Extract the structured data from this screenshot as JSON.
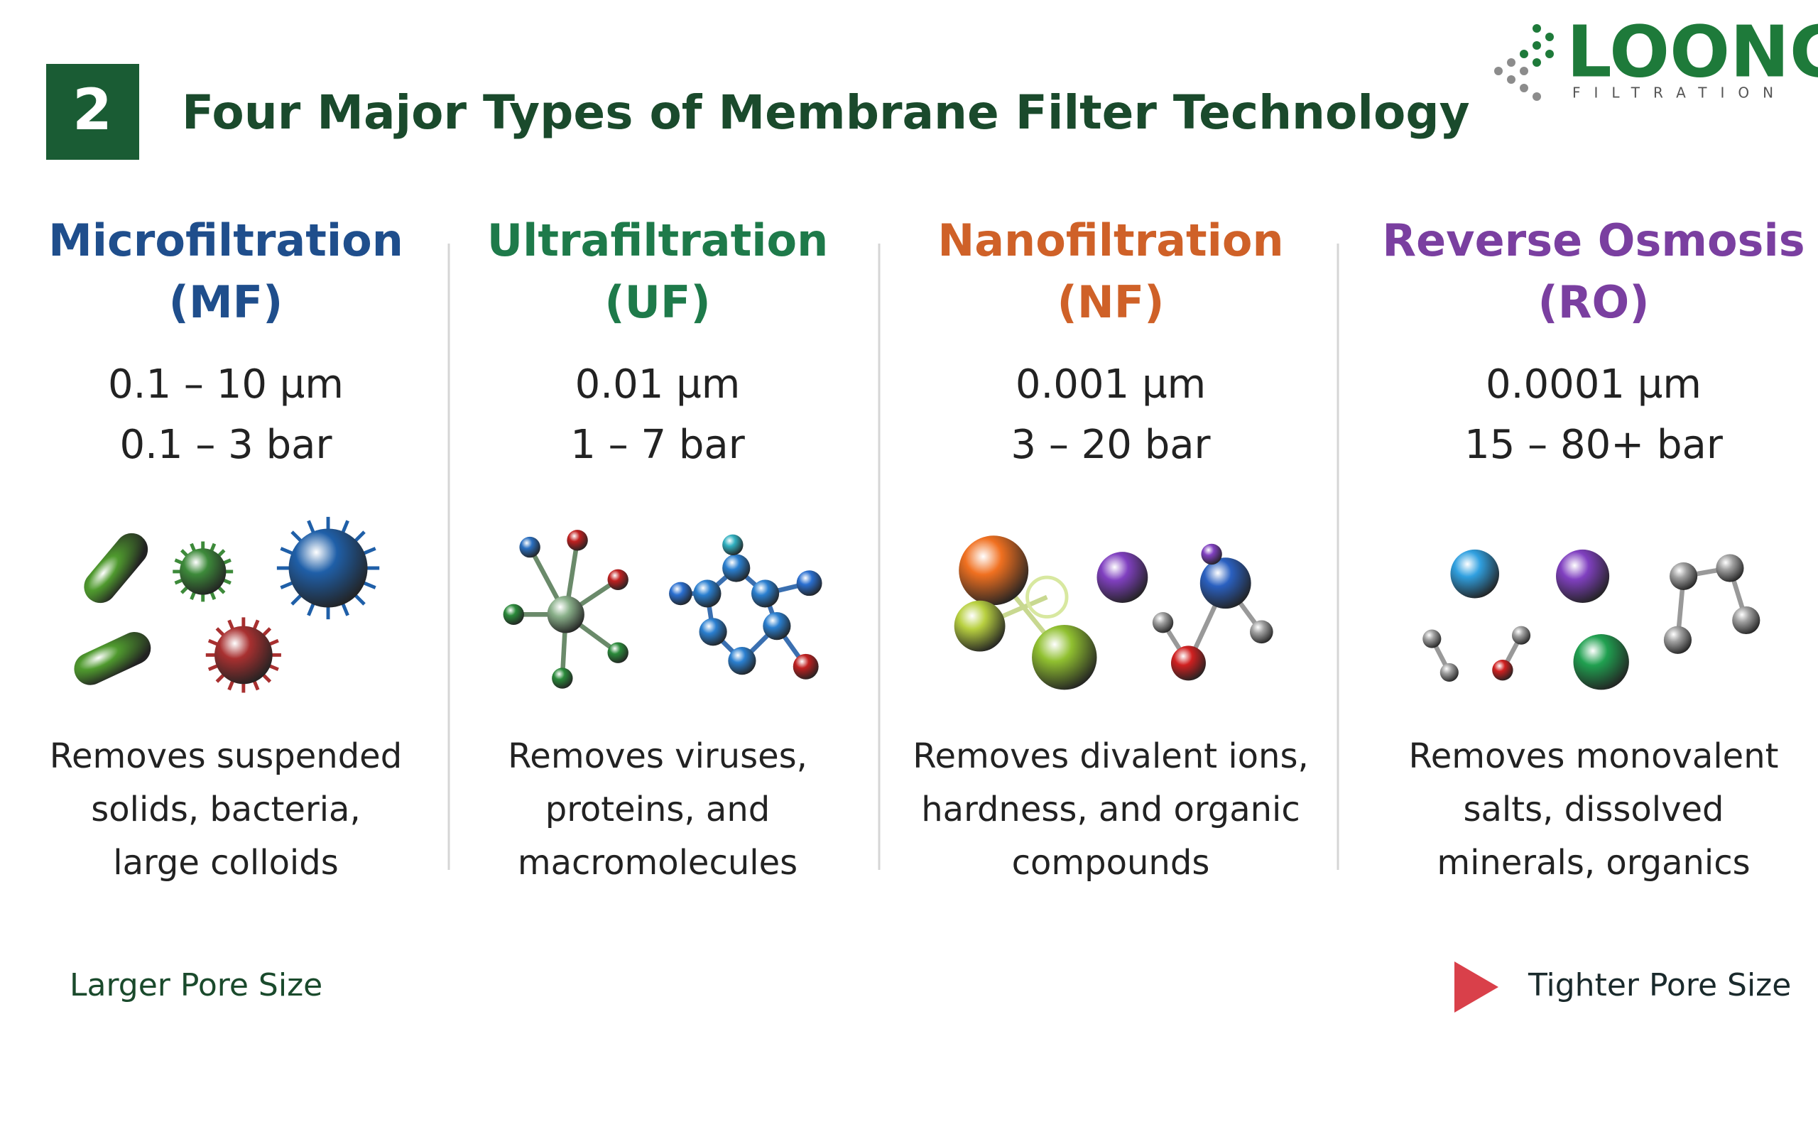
{
  "header": {
    "number": "2",
    "title": "Four Major Types of Membrane Filter Technology"
  },
  "logo": {
    "name": "LOONG",
    "tagline": "FILTRATION"
  },
  "columns": [
    {
      "name": "Microfiltration",
      "abbr": "(MF)",
      "pore_size": "0.1 – 10 µm",
      "pressure": "0.1 – 3 bar",
      "description": [
        "Removes suspended",
        "solids, bacteria,",
        "large colloids"
      ],
      "color": "#1f4e8c"
    },
    {
      "name": "Ultrafiltration",
      "abbr": "(UF)",
      "pore_size": "0.01 µm",
      "pressure": "1 – 7 bar",
      "description": [
        "Removes viruses,",
        "proteins, and",
        "macromolecules"
      ],
      "color": "#1e7a4a"
    },
    {
      "name": "Nanofiltration",
      "abbr": "(NF)",
      "pore_size": "0.001 µm",
      "pressure": "3 – 20 bar",
      "description": [
        "Removes divalent ions,",
        "hardness, and organic",
        "compounds"
      ],
      "color": "#cf6128"
    },
    {
      "name": "Reverse Osmosis",
      "abbr": "(RO)",
      "pore_size": "0.0001 µm",
      "pressure": "15 – 80+ bar",
      "description": [
        "Removes monovalent",
        "salts, dissolved",
        "minerals, organics"
      ],
      "color": "#7a3fa0"
    }
  ],
  "scale": {
    "left_label": "Larger Pore Size",
    "right_label": "Tighter Pore Size"
  }
}
